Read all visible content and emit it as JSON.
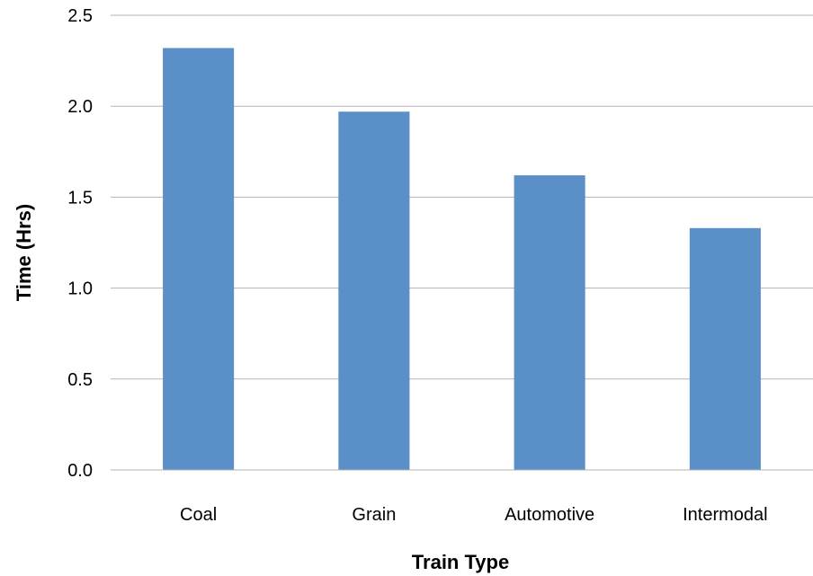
{
  "chart_data": {
    "type": "bar",
    "title": "",
    "xlabel": "Train Type",
    "ylabel": "Time (Hrs)",
    "categories": [
      "Coal",
      "Grain",
      "Automotive",
      "Intermodal"
    ],
    "values": [
      2.32,
      1.97,
      1.62,
      1.33
    ],
    "ylim": [
      0,
      2.5
    ],
    "yticks": [
      "0.0",
      "0.5",
      "1.0",
      "1.5",
      "2.0",
      "2.5"
    ],
    "grid": "horizontal",
    "legend": "none",
    "bar_color": "#5B8FC7",
    "grid_color": "#B3B3B3"
  }
}
